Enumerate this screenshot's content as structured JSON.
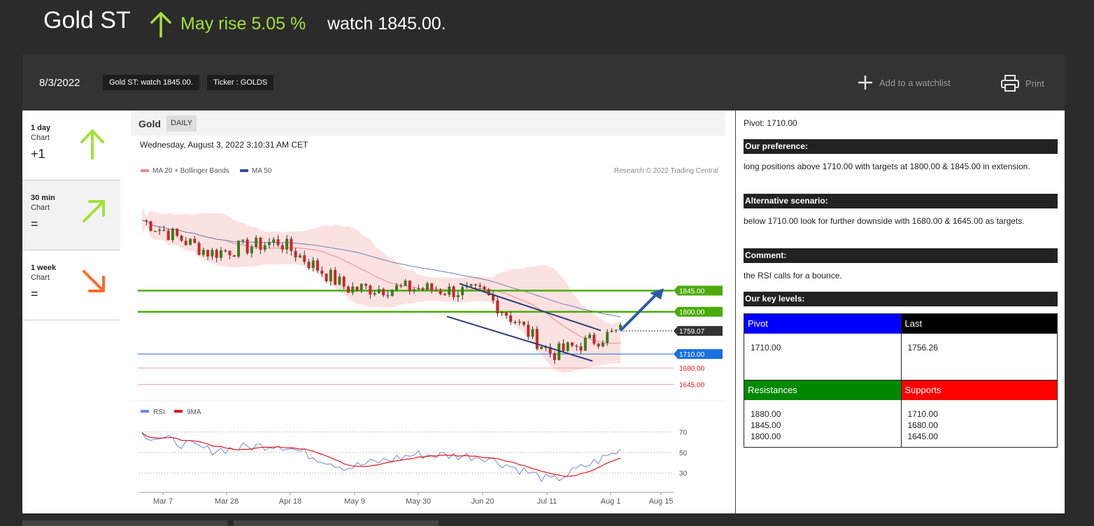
{
  "header": {
    "title": "Gold ST",
    "rise_text": "May rise 5.05 %",
    "watch_text": "watch 1845.00.",
    "arrow_color": "#a3e03a"
  },
  "toolbar": {
    "date": "8/3/2022",
    "tag_summary": "Gold ST: watch 1845.00.",
    "tag_ticker": "Ticker : GOLDS",
    "add_watchlist": "Add to a watchlist",
    "print": "Print"
  },
  "sidebar": {
    "items": [
      {
        "period": "1 day",
        "chart": "Chart",
        "score": "+1",
        "arrow": "arrow-up-icon",
        "color": "#a3e03a"
      },
      {
        "period": "30 min",
        "chart": "Chart",
        "score": "=",
        "arrow": "arrow-up-right-icon",
        "color": "#a3e03a"
      },
      {
        "period": "1 week",
        "chart": "Chart",
        "score": "=",
        "arrow": "arrow-down-right-icon",
        "color": "#ff6a2b"
      }
    ]
  },
  "chart": {
    "name": "Gold",
    "period": "DAILY",
    "timestamp": "Wednesday, August 3, 2022 3:10:31 AM CET",
    "legend_ma20": "MA 20 + Bollinger Bands",
    "legend_ma50": "MA 50",
    "credit": "Research © 2022 Trading Central",
    "rsi_legend_rsi": "RSI",
    "rsi_legend_9ma": "9MA",
    "rsi_ticks": [
      "70",
      "50",
      "30"
    ],
    "x_ticks": [
      "Mar 7",
      "Mar 28",
      "Apr 18",
      "May 9",
      "May 30",
      "Jun 20",
      "Jul 11",
      "Aug 1",
      "Aug 15"
    ],
    "levels": [
      {
        "label": "1845.00",
        "value": 1845,
        "color": "#4caa0a",
        "style": "badge"
      },
      {
        "label": "1800.00",
        "value": 1800,
        "color": "#4caa0a",
        "style": "badge"
      },
      {
        "label": "1759.07",
        "value": 1759.07,
        "color": "#333333",
        "style": "badge"
      },
      {
        "label": "1710.00",
        "value": 1710,
        "color": "#1a6ee0",
        "style": "badge"
      },
      {
        "label": "1680.00",
        "value": 1680,
        "color": "#e01a1a",
        "style": "text"
      },
      {
        "label": "1645.00",
        "value": 1645,
        "color": "#e01a1a",
        "style": "text"
      }
    ]
  },
  "chart_data": {
    "type": "line",
    "title": "Gold",
    "x": [
      "Mar 7",
      "Mar 28",
      "Apr 18",
      "May 9",
      "May 30",
      "Jun 20",
      "Jul 11",
      "Aug 1"
    ],
    "series": [
      {
        "name": "Gold",
        "values": [
          1995,
          1925,
          1950,
          1850,
          1850,
          1840,
          1710,
          1759
        ]
      },
      {
        "name": "RSI",
        "values": [
          68,
          52,
          58,
          35,
          48,
          46,
          22,
          52
        ]
      }
    ],
    "ylim": [
      1640,
      2080
    ],
    "rsi_ylim": [
      15,
      80
    ]
  },
  "analysis": {
    "pivot": "Pivot: 1710.00",
    "preference_h": "Our preference:",
    "preference_t": "long positions above 1710.00 with targets at 1800.00 & 1845.00 in extension.",
    "alternative_h": "Alternative scenario:",
    "alternative_t": "below 1710.00 look for further downside with 1680.00 & 1645.00 as targets.",
    "comment_h": "Comment:",
    "comment_t": "the RSI calls for a bounce.",
    "keylevels_h": "Our key levels:"
  },
  "key_levels": {
    "pivot_h": "Pivot",
    "pivot_v": "1710.00",
    "pivot_color": "#0000ff",
    "last_h": "Last",
    "last_v": "1756.26",
    "last_color": "#000000",
    "res_h": "Resistances",
    "res_v": [
      "1880.00",
      "1845.00",
      "1800.00"
    ],
    "res_color": "#008800",
    "sup_h": "Supports",
    "sup_v": [
      "1710.00",
      "1680.00",
      "1645.00"
    ],
    "sup_color": "#ff0000"
  }
}
